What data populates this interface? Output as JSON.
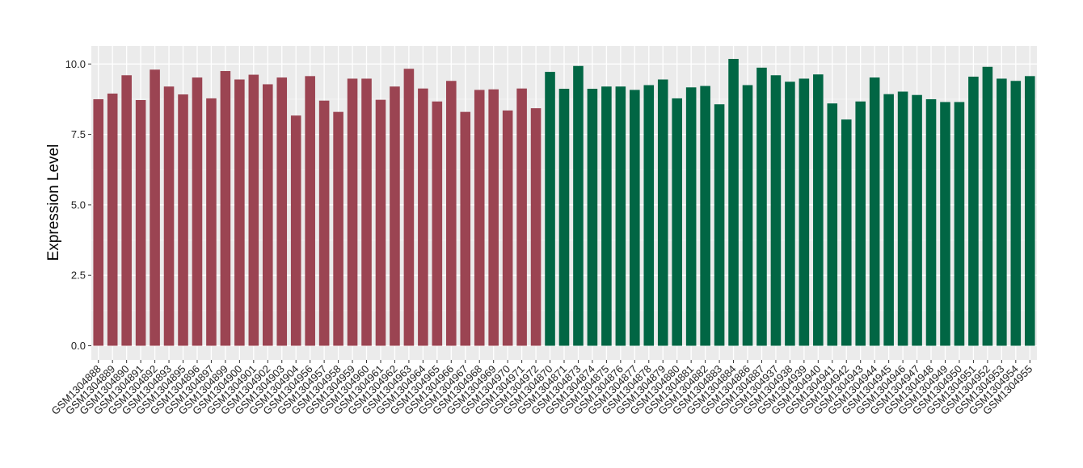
{
  "chart_data": {
    "type": "bar",
    "title": "",
    "xlabel": "",
    "ylabel": "Expression Level",
    "ylim": [
      0,
      10.5
    ],
    "yticks": [
      "0.0",
      "2.5",
      "5.0",
      "7.5",
      "10.0"
    ],
    "grid": true,
    "legend": "none",
    "series": [
      {
        "color": "#9b4452",
        "categories": [
          "GSM1304888",
          "GSM1304889",
          "GSM1304890",
          "GSM1304891",
          "GSM1304892",
          "GSM1304893",
          "GSM1304895",
          "GSM1304896",
          "GSM1304897",
          "GSM1304899",
          "GSM1304900",
          "GSM1304901",
          "GSM1304902",
          "GSM1304903",
          "GSM1304904",
          "GSM1304956",
          "GSM1304957",
          "GSM1304958",
          "GSM1304959",
          "GSM1304960",
          "GSM1304961",
          "GSM1304962",
          "GSM1304963",
          "GSM1304964",
          "GSM1304965",
          "GSM1304966",
          "GSM1304967",
          "GSM1304968",
          "GSM1304969",
          "GSM1304970",
          "GSM1304971",
          "GSM1304972"
        ],
        "values": [
          8.75,
          8.95,
          9.6,
          8.72,
          9.8,
          9.2,
          8.92,
          9.52,
          8.78,
          9.75,
          9.45,
          9.62,
          9.28,
          9.52,
          8.17,
          9.57,
          8.7,
          8.3,
          9.48,
          9.48,
          8.73,
          9.2,
          9.83,
          9.13,
          8.67,
          9.4,
          8.3,
          9.08,
          9.1,
          8.35,
          9.13,
          8.43
        ]
      },
      {
        "color": "#016644",
        "categories": [
          "GSM1304870",
          "GSM1304871",
          "GSM1304873",
          "GSM1304874",
          "GSM1304875",
          "GSM1304876",
          "GSM1304877",
          "GSM1304878",
          "GSM1304879",
          "GSM1304880",
          "GSM1304881",
          "GSM1304882",
          "GSM1304883",
          "GSM1304884",
          "GSM1304886",
          "GSM1304887",
          "GSM1304937",
          "GSM1304938",
          "GSM1304939",
          "GSM1304940",
          "GSM1304941",
          "GSM1304942",
          "GSM1304943",
          "GSM1304944",
          "GSM1304945",
          "GSM1304946",
          "GSM1304947",
          "GSM1304948",
          "GSM1304949",
          "GSM1304950",
          "GSM1304951",
          "GSM1304952",
          "GSM1304953",
          "GSM1304954",
          "GSM1304955"
        ],
        "values": [
          9.72,
          9.12,
          9.93,
          9.12,
          9.2,
          9.2,
          9.08,
          9.25,
          9.45,
          8.78,
          9.17,
          9.22,
          8.57,
          10.18,
          9.25,
          9.87,
          9.6,
          9.37,
          9.48,
          9.63,
          8.6,
          8.03,
          8.67,
          9.52,
          8.93,
          9.02,
          8.9,
          8.75,
          8.65,
          8.65,
          9.55,
          9.9,
          9.48,
          9.4,
          9.57
        ]
      }
    ]
  }
}
